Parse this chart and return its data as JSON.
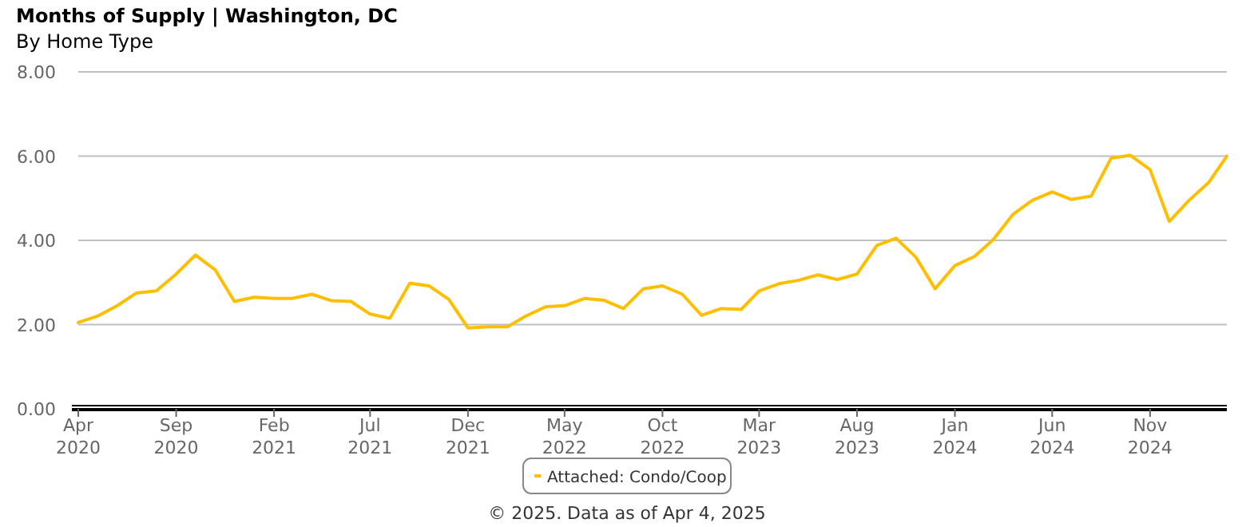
{
  "chart_data": {
    "type": "line",
    "title": "Months of Supply | Washington, DC",
    "subtitle": "By Home Type",
    "x": [
      "2020-04",
      "2020-05",
      "2020-06",
      "2020-07",
      "2020-08",
      "2020-09",
      "2020-10",
      "2020-11",
      "2020-12",
      "2021-01",
      "2021-02",
      "2021-03",
      "2021-04",
      "2021-05",
      "2021-06",
      "2021-07",
      "2021-08",
      "2021-09",
      "2021-10",
      "2021-11",
      "2021-12",
      "2022-01",
      "2022-02",
      "2022-03",
      "2022-04",
      "2022-05",
      "2022-06",
      "2022-07",
      "2022-08",
      "2022-09",
      "2022-10",
      "2022-11",
      "2022-12",
      "2023-01",
      "2023-02",
      "2023-03",
      "2023-04",
      "2023-05",
      "2023-06",
      "2023-07",
      "2023-08",
      "2023-09",
      "2023-10",
      "2023-11",
      "2023-12",
      "2024-01",
      "2024-02",
      "2024-03",
      "2024-04",
      "2024-05",
      "2024-06",
      "2024-07",
      "2024-08",
      "2024-09",
      "2024-10",
      "2024-11",
      "2024-12",
      "2025-01",
      "2025-02",
      "2025-03"
    ],
    "series": [
      {
        "name": "Attached: Condo/Coop",
        "color": "#ffbf00",
        "values": [
          2.05,
          2.2,
          2.45,
          2.75,
          2.8,
          3.2,
          3.65,
          3.3,
          2.55,
          2.65,
          2.62,
          2.62,
          2.72,
          2.57,
          2.55,
          2.25,
          2.15,
          2.98,
          2.92,
          2.6,
          1.92,
          1.95,
          1.95,
          2.2,
          2.42,
          2.45,
          2.62,
          2.58,
          2.38,
          2.85,
          2.92,
          2.72,
          2.22,
          2.38,
          2.36,
          2.8,
          2.97,
          3.05,
          3.18,
          3.07,
          3.2,
          3.88,
          4.05,
          3.6,
          2.85,
          3.4,
          3.62,
          4.02,
          4.62,
          4.95,
          5.15,
          4.97,
          5.05,
          5.95,
          6.02,
          5.68,
          4.45,
          4.95,
          5.38,
          6.0
        ]
      }
    ],
    "xlim": [
      "2020-04",
      "2025-03"
    ],
    "xticks": [
      {
        "value": "2020-04",
        "label": "Apr 2020"
      },
      {
        "value": "2020-09",
        "label": "Sep 2020"
      },
      {
        "value": "2021-02",
        "label": "Feb 2021"
      },
      {
        "value": "2021-07",
        "label": "Jul 2021"
      },
      {
        "value": "2021-12",
        "label": "Dec 2021"
      },
      {
        "value": "2022-05",
        "label": "May 2022"
      },
      {
        "value": "2022-10",
        "label": "Oct 2022"
      },
      {
        "value": "2023-03",
        "label": "Mar 2023"
      },
      {
        "value": "2023-08",
        "label": "Aug 2023"
      },
      {
        "value": "2024-01",
        "label": "Jan 2024"
      },
      {
        "value": "2024-06",
        "label": "Jun 2024"
      },
      {
        "value": "2024-11",
        "label": "Nov 2024"
      }
    ],
    "ylim": [
      0,
      8
    ],
    "yticks": [
      {
        "value": 0,
        "label": "0.00"
      },
      {
        "value": 2,
        "label": "2.00"
      },
      {
        "value": 4,
        "label": "4.00"
      },
      {
        "value": 6,
        "label": "6.00"
      },
      {
        "value": 8,
        "label": "8.00"
      }
    ],
    "grid": "y",
    "legend": "bottom",
    "marker": "none",
    "line_style": "solid",
    "annotations": [
      "© 2025. Data as of Apr 4, 2025"
    ]
  }
}
